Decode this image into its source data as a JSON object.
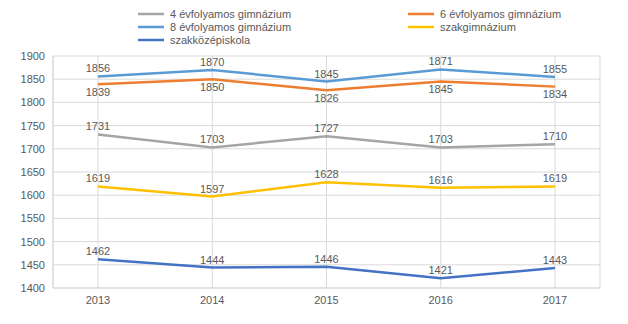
{
  "chart_data": {
    "type": "line",
    "categories": [
      "2013",
      "2014",
      "2015",
      "2016",
      "2017"
    ],
    "series": [
      {
        "name": "8 évfolyamos gimnázium",
        "color": "#5b9bd5",
        "values": [
          1856,
          1870,
          1845,
          1871,
          1855
        ]
      },
      {
        "name": "6 évfolyamos gimnázium",
        "color": "#ed7d31",
        "values": [
          1839,
          1850,
          1826,
          1845,
          1834
        ]
      },
      {
        "name": "4 évfolyamos gimnázium",
        "color": "#a5a5a5",
        "values": [
          1731,
          1703,
          1727,
          1703,
          1710
        ]
      },
      {
        "name": "szakgimnázium",
        "color": "#ffc000",
        "values": [
          1619,
          1597,
          1628,
          1616,
          1619
        ]
      },
      {
        "name": "szakközépiskola",
        "color": "#4472c4",
        "values": [
          1462,
          1444,
          1446,
          1421,
          1443
        ]
      }
    ],
    "ylim": [
      1400,
      1900
    ],
    "yticks": [
      1400,
      1450,
      1500,
      1550,
      1600,
      1650,
      1700,
      1750,
      1800,
      1850,
      1900
    ],
    "grid": true,
    "data_labels": true,
    "legend": "top"
  }
}
